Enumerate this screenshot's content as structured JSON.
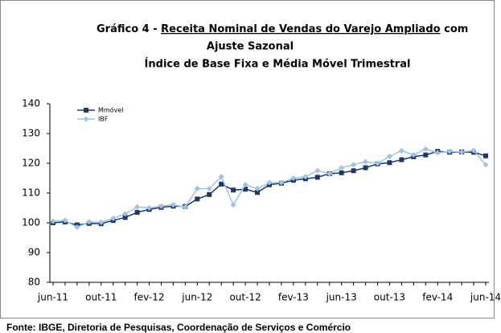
{
  "chart_data": {
    "type": "line",
    "title": {
      "label": "Gráfico 4 -",
      "underlined": "Receita Nominal de Vendas do Varejo Ampliado",
      "suffix": "com"
    },
    "subtitle": [
      "Ajuste Sazonal",
      "Índice de Base Fixa e Média Móvel Trimestral"
    ],
    "categories": [
      "jun-11",
      null,
      null,
      null,
      "out-11",
      null,
      null,
      null,
      "fev-12",
      null,
      null,
      null,
      "jun-12",
      null,
      null,
      null,
      "out-12",
      null,
      null,
      null,
      "fev-13",
      null,
      null,
      null,
      "jun-13",
      null,
      null,
      null,
      "out-13",
      null,
      null,
      null,
      "fev-14",
      null,
      null,
      null,
      "jun-14"
    ],
    "series": [
      {
        "name": "Mmóvel",
        "color": "#1f3864",
        "marker": "square",
        "values": [
          100.0,
          100.3,
          99.3,
          99.8,
          99.7,
          100.8,
          101.8,
          103.5,
          104.5,
          105.2,
          105.6,
          105.5,
          108.0,
          109.5,
          113.0,
          111.0,
          111.3,
          110.2,
          112.8,
          113.3,
          114.3,
          114.8,
          115.3,
          116.5,
          116.8,
          117.5,
          118.5,
          119.8,
          120.2,
          121.2,
          122.2,
          122.8,
          124.0,
          123.7,
          123.8,
          123.7,
          122.5
        ]
      },
      {
        "name": "IBF",
        "color": "#9dc3e6",
        "marker": "diamond",
        "values": [
          100.5,
          100.8,
          98.5,
          100.3,
          100.2,
          101.5,
          103.0,
          105.3,
          105.0,
          105.6,
          106.0,
          105.3,
          111.5,
          111.5,
          115.5,
          106.0,
          112.8,
          111.5,
          113.5,
          113.5,
          115.0,
          115.5,
          117.5,
          116.5,
          118.5,
          119.5,
          120.5,
          120.0,
          122.3,
          124.2,
          122.8,
          124.8,
          123.5,
          124.0,
          123.8,
          124.3,
          119.5
        ]
      }
    ],
    "ylim": [
      80,
      140
    ],
    "yticks": [
      80,
      90,
      100,
      110,
      120,
      130,
      140
    ],
    "grid": false,
    "legend": "upper-left",
    "source": "Fonte: IBGE, Diretoria de Pesquisas, Coordenação de Serviços e Comércio"
  }
}
